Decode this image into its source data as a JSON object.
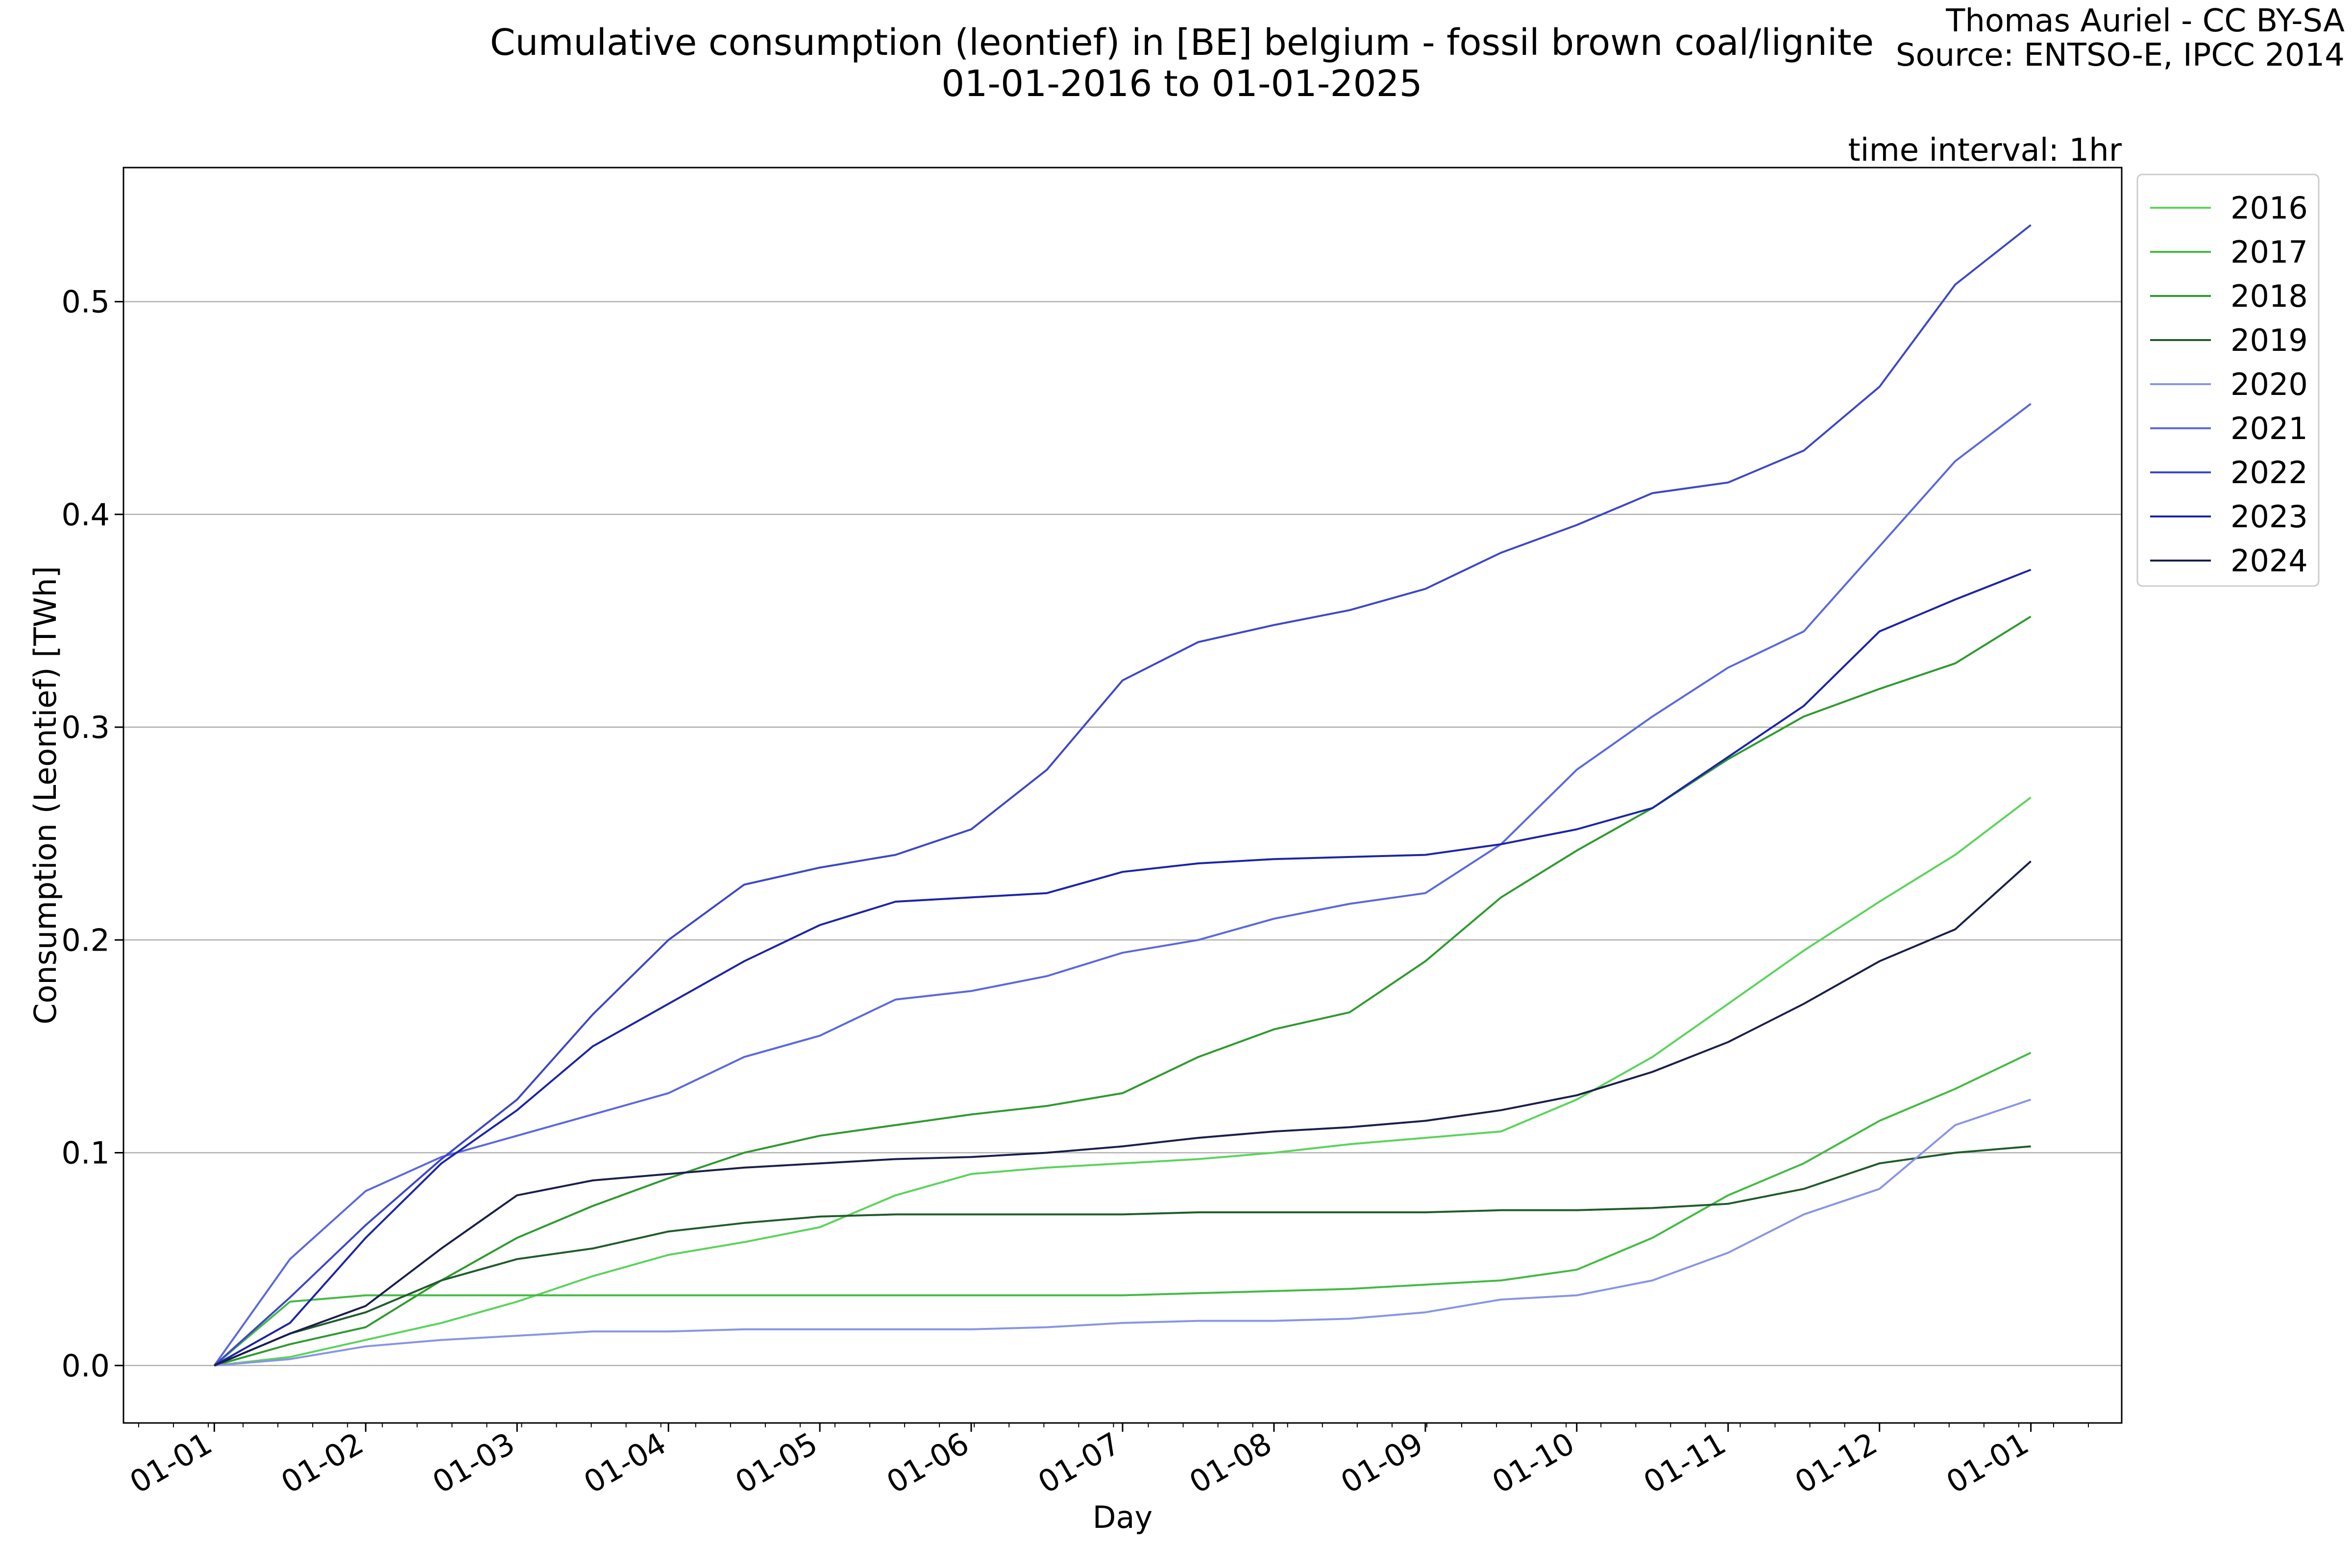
{
  "header": {
    "title_line1": "Cumulative consumption (leontief) in [BE] belgium - fossil brown coal/lignite",
    "title_line2": "01-01-2016 to 01-01-2025",
    "credit_line1": "Thomas Auriel - CC BY-SA",
    "credit_line2": "Source: ENTSO-E, IPCC 2014",
    "interval_note": "time interval: 1hr"
  },
  "chart_data": {
    "type": "line",
    "title": "Cumulative consumption (leontief) in [BE] belgium - fossil brown coal/lignite",
    "subtitle": "01-01-2016 to 01-01-2025",
    "xlabel": "Day",
    "ylabel": "Consumption (Leontief) [TWh]",
    "x_unit": "month of year",
    "xlim": [
      -0.6,
      12.6
    ],
    "ylim": [
      -0.027,
      0.563
    ],
    "yticks": [
      0.0,
      0.1,
      0.2,
      0.3,
      0.4,
      0.5
    ],
    "ytick_labels": [
      "0.0",
      "0.1",
      "0.2",
      "0.3",
      "0.4",
      "0.5"
    ],
    "xticks": [
      0,
      1,
      2,
      3,
      4,
      5,
      6,
      7,
      8,
      9,
      10,
      11,
      12
    ],
    "xtick_labels": [
      "01-01",
      "01-02",
      "01-03",
      "01-04",
      "01-05",
      "01-06",
      "01-07",
      "01-08",
      "01-09",
      "01-10",
      "01-11",
      "01-12",
      "01-01"
    ],
    "grid": "horizontal",
    "legend_position": "outside-right-top",
    "x": [
      0,
      0.5,
      1,
      1.5,
      2,
      2.5,
      3,
      3.5,
      4,
      4.5,
      5,
      5.5,
      6,
      6.5,
      7,
      7.5,
      8,
      8.5,
      9,
      9.5,
      10,
      10.5,
      11,
      11.5,
      12
    ],
    "series": [
      {
        "name": "2016",
        "color": "#5ad45a",
        "values": [
          0,
          0.004,
          0.012,
          0.02,
          0.03,
          0.042,
          0.052,
          0.058,
          0.065,
          0.08,
          0.09,
          0.093,
          0.095,
          0.097,
          0.1,
          0.104,
          0.107,
          0.11,
          0.125,
          0.145,
          0.17,
          0.195,
          0.218,
          0.24,
          0.267
        ]
      },
      {
        "name": "2017",
        "color": "#42bb42",
        "values": [
          0,
          0.03,
          0.033,
          0.033,
          0.033,
          0.033,
          0.033,
          0.033,
          0.033,
          0.033,
          0.033,
          0.033,
          0.033,
          0.034,
          0.035,
          0.036,
          0.038,
          0.04,
          0.045,
          0.06,
          0.08,
          0.095,
          0.115,
          0.13,
          0.147
        ]
      },
      {
        "name": "2018",
        "color": "#2e9a2e",
        "values": [
          0,
          0.01,
          0.018,
          0.04,
          0.06,
          0.075,
          0.088,
          0.1,
          0.108,
          0.113,
          0.118,
          0.122,
          0.128,
          0.145,
          0.158,
          0.166,
          0.19,
          0.22,
          0.242,
          0.262,
          0.285,
          0.305,
          0.318,
          0.33,
          0.352
        ]
      },
      {
        "name": "2019",
        "color": "#1f5c2a",
        "values": [
          0,
          0.015,
          0.025,
          0.04,
          0.05,
          0.055,
          0.063,
          0.067,
          0.07,
          0.071,
          0.071,
          0.071,
          0.071,
          0.072,
          0.072,
          0.072,
          0.072,
          0.073,
          0.073,
          0.074,
          0.076,
          0.083,
          0.095,
          0.1,
          0.103
        ]
      },
      {
        "name": "2020",
        "color": "#8894e6",
        "values": [
          0,
          0.003,
          0.009,
          0.012,
          0.014,
          0.016,
          0.016,
          0.017,
          0.017,
          0.017,
          0.017,
          0.018,
          0.02,
          0.021,
          0.021,
          0.022,
          0.025,
          0.031,
          0.033,
          0.04,
          0.053,
          0.071,
          0.083,
          0.113,
          0.125
        ]
      },
      {
        "name": "2021",
        "color": "#5a68de",
        "values": [
          0,
          0.05,
          0.082,
          0.098,
          0.108,
          0.118,
          0.128,
          0.145,
          0.155,
          0.172,
          0.176,
          0.183,
          0.194,
          0.2,
          0.21,
          0.217,
          0.222,
          0.245,
          0.28,
          0.305,
          0.328,
          0.345,
          0.385,
          0.425,
          0.452
        ]
      },
      {
        "name": "2022",
        "color": "#3d47c8",
        "values": [
          0,
          0.032,
          0.066,
          0.097,
          0.125,
          0.165,
          0.2,
          0.226,
          0.234,
          0.24,
          0.252,
          0.28,
          0.322,
          0.34,
          0.348,
          0.355,
          0.365,
          0.382,
          0.395,
          0.41,
          0.415,
          0.43,
          0.46,
          0.508,
          0.536
        ]
      },
      {
        "name": "2023",
        "color": "#1c24a8",
        "values": [
          0,
          0.02,
          0.06,
          0.095,
          0.12,
          0.15,
          0.17,
          0.19,
          0.207,
          0.218,
          0.22,
          0.222,
          0.232,
          0.236,
          0.238,
          0.239,
          0.24,
          0.245,
          0.252,
          0.262,
          0.286,
          0.31,
          0.345,
          0.36,
          0.374
        ]
      },
      {
        "name": "2024",
        "color": "#1a1f4a",
        "values": [
          0,
          0.015,
          0.028,
          0.055,
          0.08,
          0.087,
          0.09,
          0.093,
          0.095,
          0.097,
          0.098,
          0.1,
          0.103,
          0.107,
          0.11,
          0.112,
          0.115,
          0.12,
          0.127,
          0.138,
          0.152,
          0.17,
          0.19,
          0.205,
          0.237
        ]
      }
    ]
  }
}
